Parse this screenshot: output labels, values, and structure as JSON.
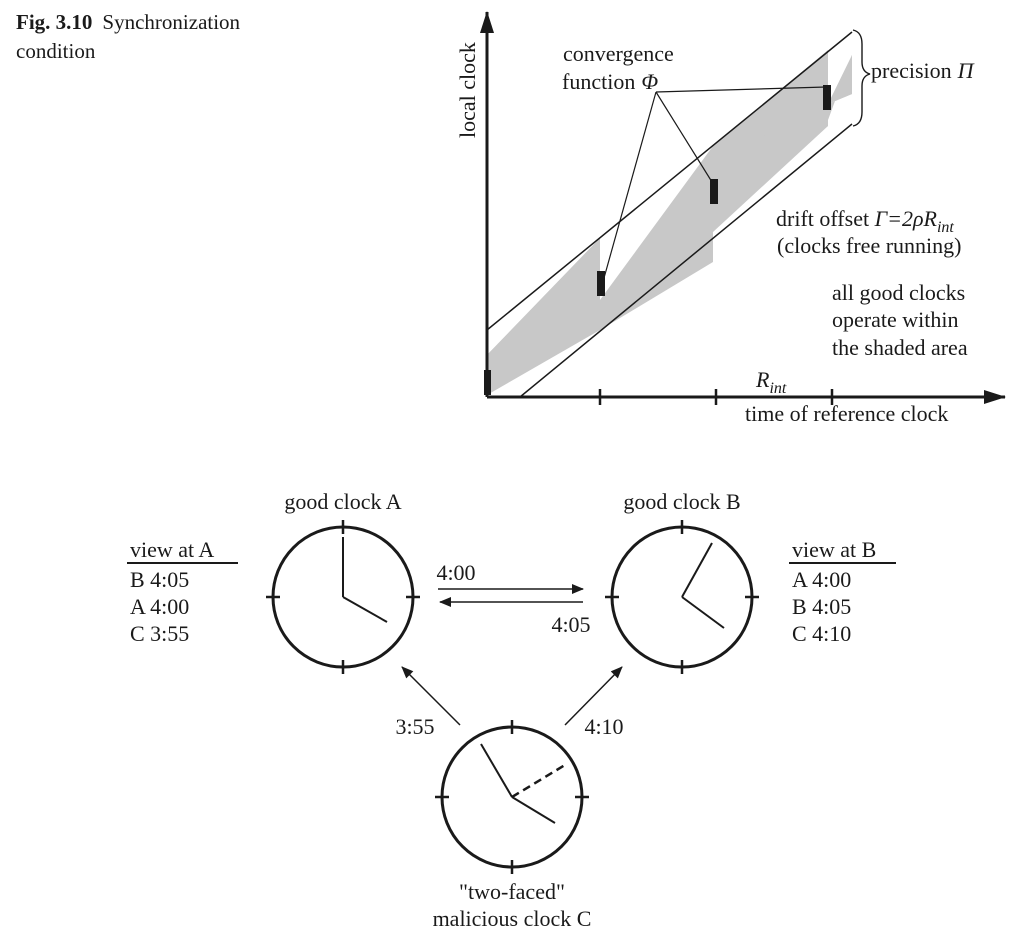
{
  "caption": {
    "fig_label": "Fig. 3.10",
    "title": "Synchronization condition"
  },
  "sync_chart": {
    "y_axis_label": "local clock",
    "x_axis_label": "time of reference clock",
    "interval_label_base": "R",
    "interval_label_sub": "int",
    "convergence_label_line1": "convergence",
    "convergence_label_line2": "function",
    "convergence_symbol": "Φ",
    "precision_label": "precision",
    "precision_symbol": "Π",
    "drift_label_prefix": "drift offset ",
    "drift_label_formula": "Γ=2ρR",
    "drift_label_sub": "int",
    "drift_label_note": "(clocks free running)",
    "shaded_note_line1": "all good clocks",
    "shaded_note_line2": "operate within",
    "shaded_note_line3": "the shaded area"
  },
  "clocks": {
    "clock_a_title": "good clock A",
    "clock_b_title": "good clock B",
    "clock_c_title_line1": "\"two-faced\"",
    "clock_c_title_line2": "malicious clock C",
    "msg_a_to_b": "4:00",
    "msg_b_to_a": "4:05",
    "msg_c_to_a": "3:55",
    "msg_c_to_b": "4:10"
  },
  "view_a": {
    "heading": "view at A",
    "rows": [
      "B 4:05",
      "A 4:00",
      "C 3:55"
    ]
  },
  "view_b": {
    "heading": "view at B",
    "rows": [
      "A 4:00",
      "B 4:05",
      "C 4:10"
    ]
  }
}
